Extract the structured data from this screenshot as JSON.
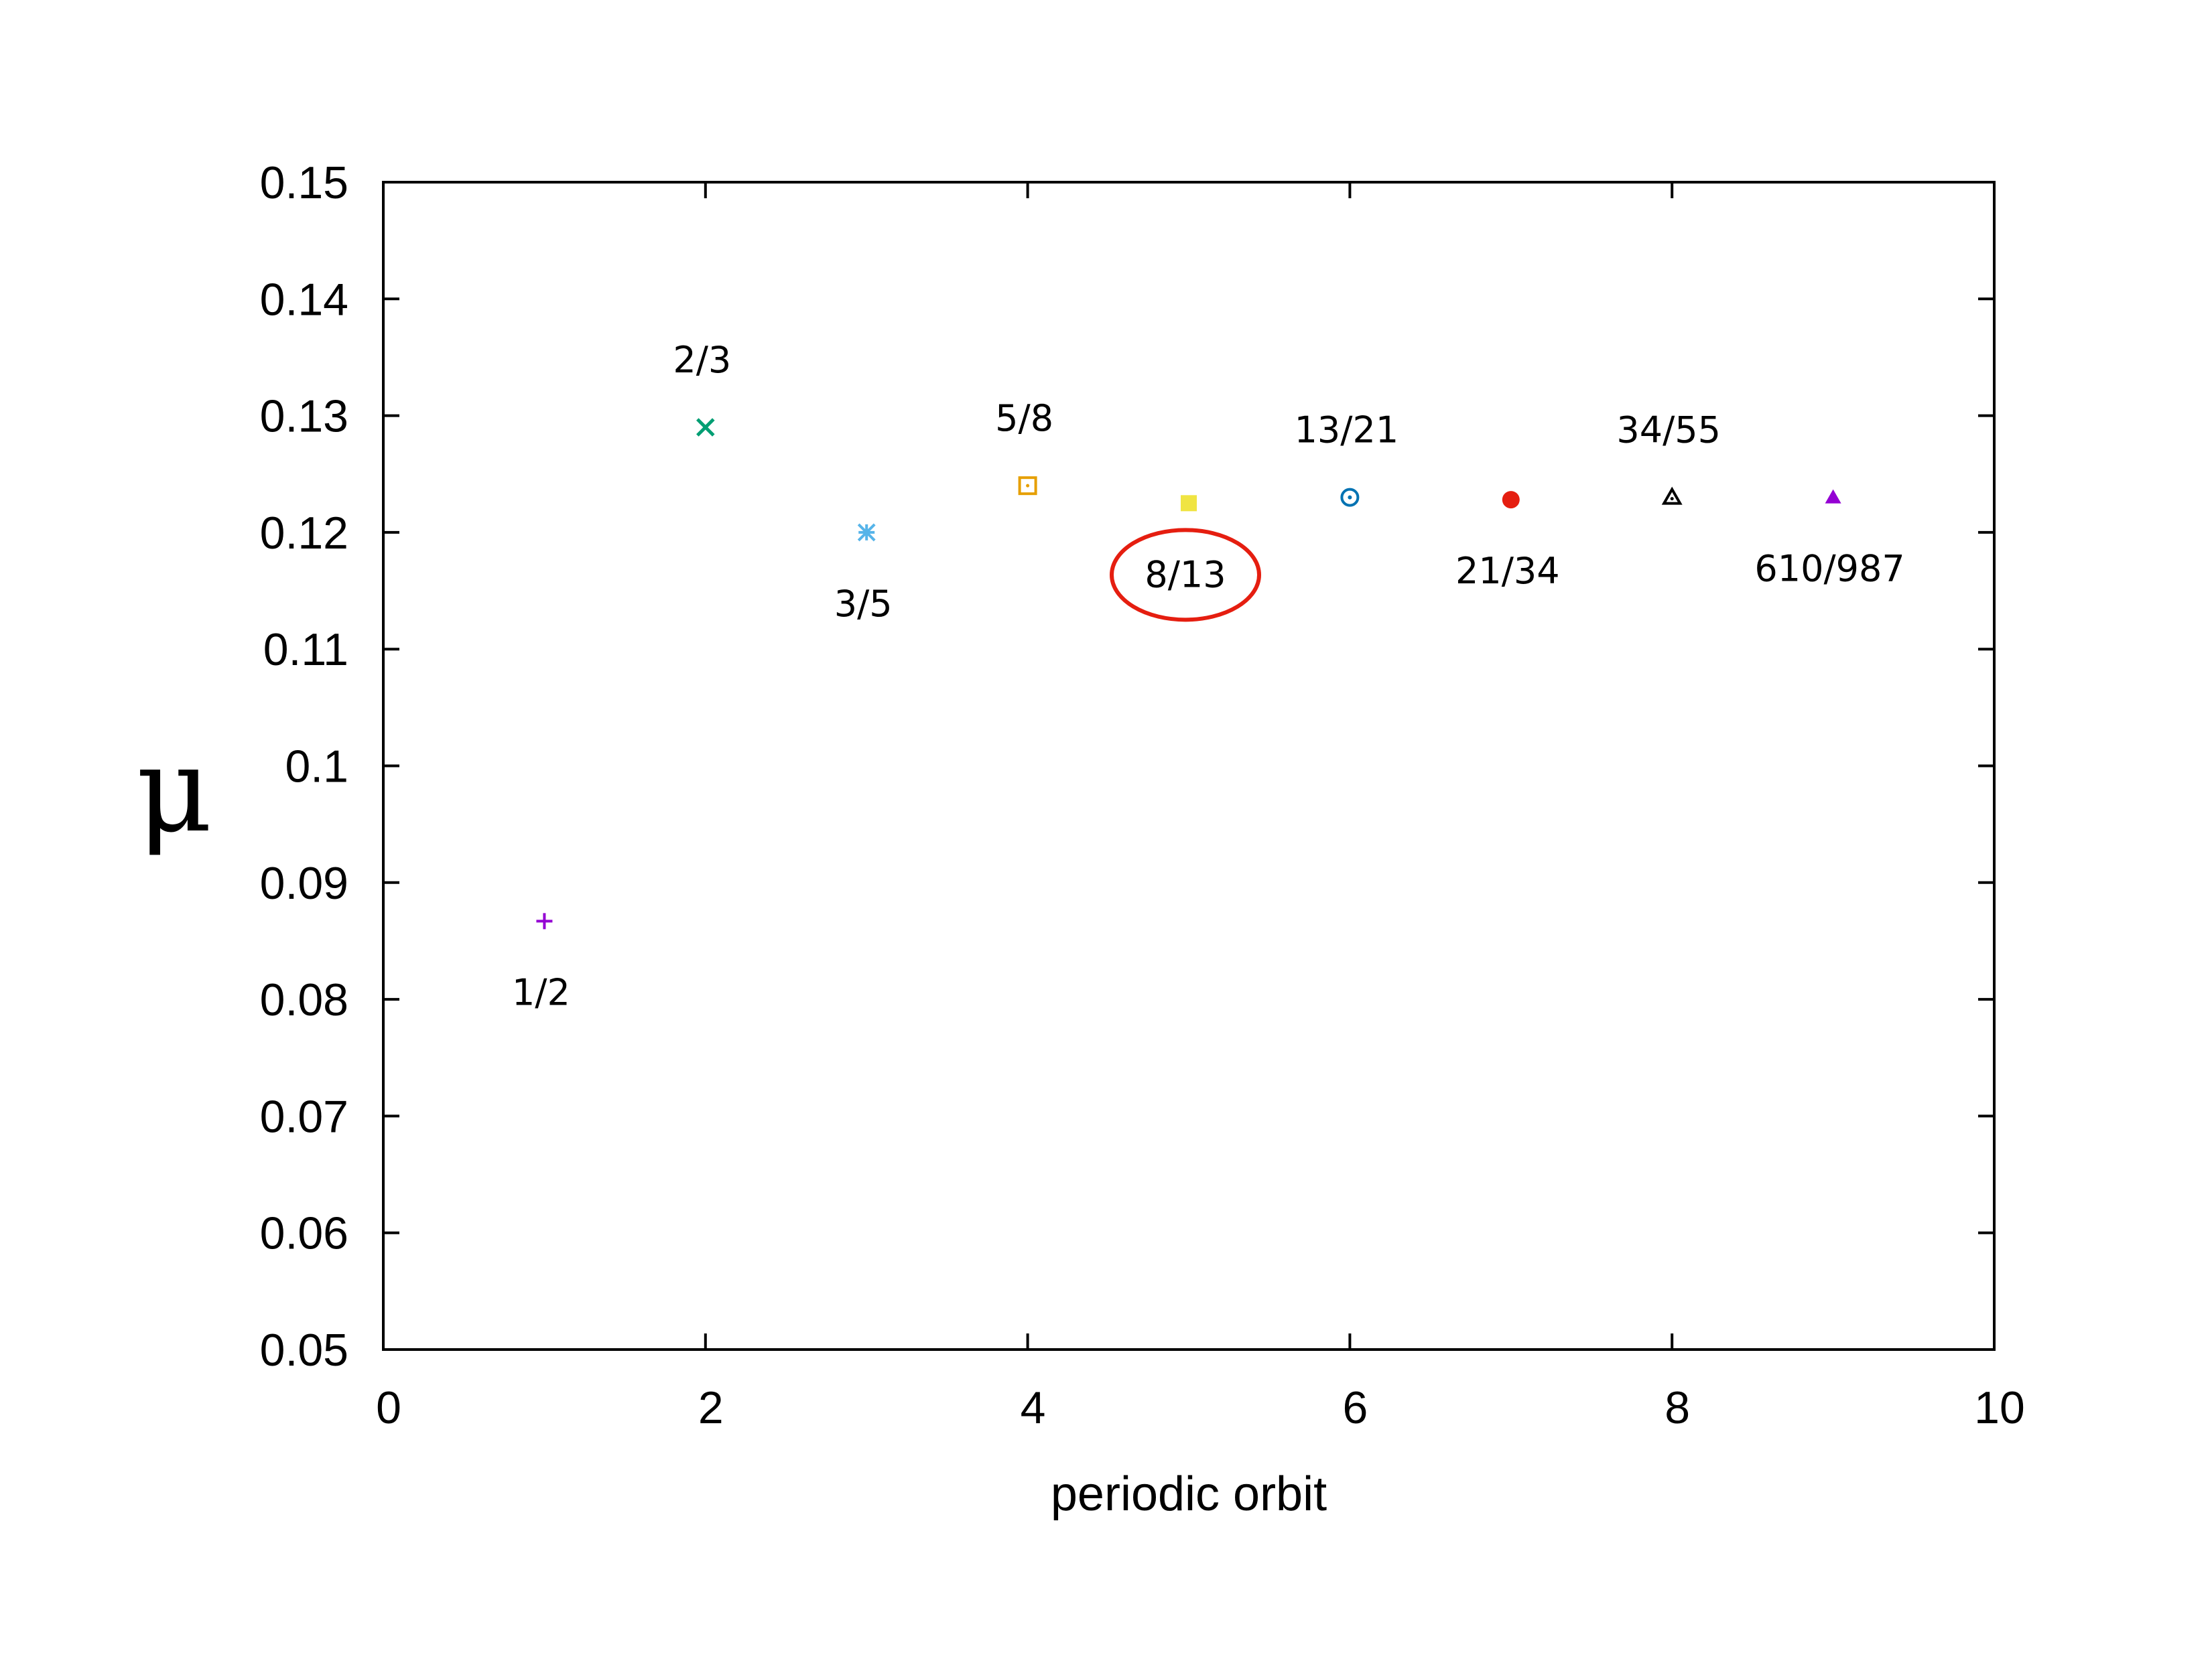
{
  "chart_data": {
    "type": "scatter",
    "title": "",
    "xlabel": "periodic orbit",
    "ylabel": "μ",
    "xlim": [
      0,
      10
    ],
    "ylim": [
      0.05,
      0.15
    ],
    "xticks": [
      "0",
      "2",
      "4",
      "6",
      "8",
      "10"
    ],
    "yticks": [
      "0.05",
      "0.06",
      "0.07",
      "0.08",
      "0.09",
      "0.1",
      "0.11",
      "0.12",
      "0.13",
      "0.14",
      "0.15"
    ],
    "grid": false,
    "legend": "none",
    "points": [
      {
        "x": 1,
        "y": 0.0867,
        "label": "1/2",
        "label_side": "below",
        "marker": "plus",
        "color": "#9400D3"
      },
      {
        "x": 2,
        "y": 0.129,
        "label": "2/3",
        "label_side": "above",
        "marker": "cross",
        "color": "#009E73"
      },
      {
        "x": 3,
        "y": 0.12,
        "label": "3/5",
        "label_side": "below",
        "marker": "asterisk",
        "color": "#56B4E9"
      },
      {
        "x": 4,
        "y": 0.124,
        "label": "5/8",
        "label_side": "above",
        "marker": "open-square-dot",
        "color": "#E69F00"
      },
      {
        "x": 5,
        "y": 0.1225,
        "label": "8/13",
        "label_side": "below",
        "marker": "filled-square",
        "color": "#F0E442",
        "highlighted": true
      },
      {
        "x": 6,
        "y": 0.123,
        "label": "13/21",
        "label_side": "above",
        "marker": "open-circle-dot",
        "color": "#0072B2"
      },
      {
        "x": 7,
        "y": 0.1228,
        "label": "21/34",
        "label_side": "below",
        "marker": "filled-circle",
        "color": "#E51E10"
      },
      {
        "x": 8,
        "y": 0.123,
        "label": "34/55",
        "label_side": "above",
        "marker": "open-triangle",
        "color": "#000000"
      },
      {
        "x": 9,
        "y": 0.123,
        "label": "610/987",
        "label_side": "below",
        "marker": "filled-triangle",
        "color": "#9400D3"
      }
    ],
    "highlight_color": "#E51E10"
  }
}
